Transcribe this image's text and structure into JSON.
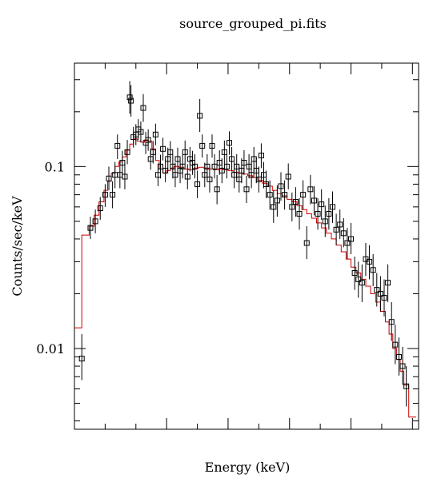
{
  "chart_data": {
    "type": "scatter",
    "title": "source_grouped_pi.fits",
    "xlabel": "Energy (keV)",
    "ylabel": "Counts/sec/keV",
    "y_scale": "log",
    "ylim": [
      0.0036,
      0.37
    ],
    "yticks": [
      {
        "value": 0.1,
        "label": "0.1"
      },
      {
        "value": 0.01,
        "label": "0.01"
      }
    ],
    "x_tick_labels_visible": false,
    "colors": {
      "data": "#000000",
      "model": "#cc0000",
      "axes": "#000000"
    },
    "series": [
      {
        "kind": "data-points-with-errors",
        "points": [
          [
            0.31,
            0.0088,
            0.012,
            0.0067
          ],
          [
            0.38,
            0.046,
            0.053,
            0.04
          ],
          [
            0.42,
            0.05,
            0.058,
            0.043
          ],
          [
            0.46,
            0.059,
            0.068,
            0.051
          ],
          [
            0.5,
            0.07,
            0.08,
            0.06
          ],
          [
            0.53,
            0.086,
            0.1,
            0.074
          ],
          [
            0.56,
            0.07,
            0.083,
            0.059
          ],
          [
            0.58,
            0.09,
            0.106,
            0.076
          ],
          [
            0.6,
            0.13,
            0.15,
            0.11
          ],
          [
            0.62,
            0.09,
            0.106,
            0.076
          ],
          [
            0.64,
            0.105,
            0.122,
            0.09
          ],
          [
            0.66,
            0.088,
            0.104,
            0.075
          ],
          [
            0.68,
            0.12,
            0.14,
            0.103
          ],
          [
            0.7,
            0.24,
            0.295,
            0.195
          ],
          [
            0.71,
            0.23,
            0.28,
            0.188
          ],
          [
            0.73,
            0.145,
            0.165,
            0.127
          ],
          [
            0.75,
            0.15,
            0.171,
            0.131
          ],
          [
            0.77,
            0.16,
            0.182,
            0.14
          ],
          [
            0.79,
            0.155,
            0.177,
            0.136
          ],
          [
            0.81,
            0.21,
            0.25,
            0.176
          ],
          [
            0.83,
            0.135,
            0.155,
            0.117
          ],
          [
            0.85,
            0.14,
            0.16,
            0.122
          ],
          [
            0.87,
            0.11,
            0.126,
            0.096
          ],
          [
            0.89,
            0.12,
            0.138,
            0.104
          ],
          [
            0.91,
            0.15,
            0.172,
            0.131
          ],
          [
            0.93,
            0.09,
            0.104,
            0.078
          ],
          [
            0.95,
            0.1,
            0.116,
            0.086
          ],
          [
            0.97,
            0.125,
            0.144,
            0.108
          ],
          [
            0.99,
            0.095,
            0.11,
            0.082
          ],
          [
            1.01,
            0.11,
            0.127,
            0.095
          ],
          [
            1.03,
            0.12,
            0.138,
            0.104
          ],
          [
            1.05,
            0.1,
            0.116,
            0.086
          ],
          [
            1.07,
            0.09,
            0.105,
            0.077
          ],
          [
            1.09,
            0.11,
            0.127,
            0.095
          ],
          [
            1.11,
            0.095,
            0.111,
            0.081
          ],
          [
            1.13,
            0.1,
            0.116,
            0.086
          ],
          [
            1.15,
            0.12,
            0.139,
            0.103
          ],
          [
            1.17,
            0.088,
            0.103,
            0.075
          ],
          [
            1.19,
            0.11,
            0.128,
            0.094
          ],
          [
            1.21,
            0.105,
            0.122,
            0.09
          ],
          [
            1.23,
            0.1,
            0.117,
            0.086
          ],
          [
            1.25,
            0.08,
            0.095,
            0.067
          ],
          [
            1.27,
            0.19,
            0.235,
            0.155
          ],
          [
            1.29,
            0.13,
            0.15,
            0.112
          ],
          [
            1.31,
            0.09,
            0.105,
            0.077
          ],
          [
            1.33,
            0.1,
            0.117,
            0.086
          ],
          [
            1.35,
            0.085,
            0.1,
            0.072
          ],
          [
            1.37,
            0.13,
            0.15,
            0.112
          ],
          [
            1.39,
            0.1,
            0.117,
            0.086
          ],
          [
            1.41,
            0.075,
            0.09,
            0.062
          ],
          [
            1.43,
            0.105,
            0.123,
            0.09
          ],
          [
            1.45,
            0.095,
            0.111,
            0.081
          ],
          [
            1.47,
            0.12,
            0.139,
            0.103
          ],
          [
            1.49,
            0.1,
            0.117,
            0.086
          ],
          [
            1.51,
            0.135,
            0.156,
            0.116
          ],
          [
            1.53,
            0.11,
            0.128,
            0.094
          ],
          [
            1.55,
            0.09,
            0.106,
            0.076
          ],
          [
            1.57,
            0.1,
            0.117,
            0.086
          ],
          [
            1.59,
            0.085,
            0.1,
            0.072
          ],
          [
            1.61,
            0.095,
            0.111,
            0.081
          ],
          [
            1.63,
            0.105,
            0.123,
            0.09
          ],
          [
            1.65,
            0.075,
            0.089,
            0.063
          ],
          [
            1.67,
            0.1,
            0.117,
            0.086
          ],
          [
            1.69,
            0.09,
            0.106,
            0.076
          ],
          [
            1.71,
            0.11,
            0.128,
            0.094
          ],
          [
            1.73,
            0.095,
            0.112,
            0.081
          ],
          [
            1.75,
            0.085,
            0.1,
            0.072
          ],
          [
            1.77,
            0.115,
            0.134,
            0.098
          ],
          [
            1.79,
            0.09,
            0.106,
            0.076
          ],
          [
            1.81,
            0.08,
            0.095,
            0.067
          ],
          [
            1.84,
            0.07,
            0.084,
            0.058
          ],
          [
            1.87,
            0.06,
            0.074,
            0.049
          ],
          [
            1.9,
            0.065,
            0.079,
            0.053
          ],
          [
            1.93,
            0.078,
            0.093,
            0.065
          ],
          [
            1.96,
            0.07,
            0.084,
            0.058
          ],
          [
            1.99,
            0.088,
            0.104,
            0.075
          ],
          [
            2.02,
            0.06,
            0.072,
            0.05
          ],
          [
            2.05,
            0.064,
            0.077,
            0.053
          ],
          [
            2.08,
            0.055,
            0.067,
            0.045
          ],
          [
            2.11,
            0.07,
            0.084,
            0.058
          ],
          [
            2.14,
            0.038,
            0.047,
            0.031
          ],
          [
            2.17,
            0.075,
            0.09,
            0.062
          ],
          [
            2.2,
            0.065,
            0.078,
            0.054
          ],
          [
            2.23,
            0.055,
            0.067,
            0.045
          ],
          [
            2.26,
            0.062,
            0.075,
            0.051
          ],
          [
            2.29,
            0.05,
            0.061,
            0.041
          ],
          [
            2.32,
            0.055,
            0.067,
            0.045
          ],
          [
            2.35,
            0.06,
            0.073,
            0.049
          ],
          [
            2.38,
            0.045,
            0.055,
            0.037
          ],
          [
            2.41,
            0.048,
            0.058,
            0.04
          ],
          [
            2.44,
            0.043,
            0.052,
            0.036
          ],
          [
            2.47,
            0.038,
            0.046,
            0.031
          ],
          [
            2.5,
            0.04,
            0.049,
            0.033
          ],
          [
            2.53,
            0.026,
            0.032,
            0.021
          ],
          [
            2.56,
            0.024,
            0.03,
            0.019
          ],
          [
            2.59,
            0.023,
            0.029,
            0.018
          ],
          [
            2.62,
            0.031,
            0.038,
            0.025
          ],
          [
            2.65,
            0.03,
            0.037,
            0.024
          ],
          [
            2.68,
            0.027,
            0.033,
            0.022
          ],
          [
            2.71,
            0.021,
            0.026,
            0.017
          ],
          [
            2.74,
            0.02,
            0.025,
            0.016
          ],
          [
            2.77,
            0.019,
            0.024,
            0.015
          ],
          [
            2.8,
            0.023,
            0.029,
            0.018
          ],
          [
            2.83,
            0.014,
            0.018,
            0.011
          ],
          [
            2.86,
            0.0105,
            0.0135,
            0.0082
          ],
          [
            2.89,
            0.009,
            0.0115,
            0.0071
          ],
          [
            2.92,
            0.008,
            0.0102,
            0.0063
          ],
          [
            2.95,
            0.0062,
            0.008,
            0.0048
          ]
        ]
      },
      {
        "kind": "model-step",
        "steps": [
          [
            0.25,
            0.31,
            0.013
          ],
          [
            0.31,
            0.37,
            0.042
          ],
          [
            0.37,
            0.41,
            0.047
          ],
          [
            0.41,
            0.45,
            0.054
          ],
          [
            0.45,
            0.49,
            0.064
          ],
          [
            0.49,
            0.52,
            0.074
          ],
          [
            0.52,
            0.55,
            0.083
          ],
          [
            0.55,
            0.58,
            0.092
          ],
          [
            0.58,
            0.61,
            0.1
          ],
          [
            0.61,
            0.64,
            0.106
          ],
          [
            0.64,
            0.67,
            0.113
          ],
          [
            0.67,
            0.7,
            0.123
          ],
          [
            0.7,
            0.73,
            0.133
          ],
          [
            0.73,
            0.76,
            0.142
          ],
          [
            0.76,
            0.79,
            0.138
          ],
          [
            0.79,
            0.82,
            0.136
          ],
          [
            0.82,
            0.85,
            0.14
          ],
          [
            0.85,
            0.88,
            0.138
          ],
          [
            0.88,
            0.91,
            0.125
          ],
          [
            0.91,
            0.94,
            0.108
          ],
          [
            0.94,
            0.97,
            0.097
          ],
          [
            0.97,
            1.0,
            0.092
          ],
          [
            1.0,
            1.03,
            0.095
          ],
          [
            1.03,
            1.06,
            0.098
          ],
          [
            1.06,
            1.1,
            0.1
          ],
          [
            1.1,
            1.14,
            0.099
          ],
          [
            1.14,
            1.18,
            0.097
          ],
          [
            1.18,
            1.22,
            0.096
          ],
          [
            1.22,
            1.26,
            0.098
          ],
          [
            1.26,
            1.3,
            0.099
          ],
          [
            1.3,
            1.34,
            0.098
          ],
          [
            1.34,
            1.38,
            0.097
          ],
          [
            1.38,
            1.42,
            0.096
          ],
          [
            1.42,
            1.46,
            0.097
          ],
          [
            1.46,
            1.5,
            0.096
          ],
          [
            1.5,
            1.54,
            0.095
          ],
          [
            1.54,
            1.58,
            0.093
          ],
          [
            1.58,
            1.62,
            0.092
          ],
          [
            1.62,
            1.66,
            0.091
          ],
          [
            1.66,
            1.7,
            0.089
          ],
          [
            1.7,
            1.74,
            0.087
          ],
          [
            1.74,
            1.78,
            0.084
          ],
          [
            1.78,
            1.82,
            0.081
          ],
          [
            1.82,
            1.86,
            0.078
          ],
          [
            1.86,
            1.9,
            0.074
          ],
          [
            1.9,
            1.94,
            0.071
          ],
          [
            1.94,
            1.98,
            0.069
          ],
          [
            1.98,
            2.02,
            0.066
          ],
          [
            2.02,
            2.06,
            0.064
          ],
          [
            2.06,
            2.1,
            0.061
          ],
          [
            2.1,
            2.14,
            0.058
          ],
          [
            2.14,
            2.18,
            0.055
          ],
          [
            2.18,
            2.22,
            0.052
          ],
          [
            2.22,
            2.26,
            0.049
          ],
          [
            2.26,
            2.3,
            0.046
          ],
          [
            2.3,
            2.34,
            0.043
          ],
          [
            2.34,
            2.38,
            0.04
          ],
          [
            2.38,
            2.42,
            0.037
          ],
          [
            2.42,
            2.46,
            0.034
          ],
          [
            2.46,
            2.5,
            0.031
          ],
          [
            2.5,
            2.54,
            0.028
          ],
          [
            2.54,
            2.58,
            0.026
          ],
          [
            2.58,
            2.62,
            0.024
          ],
          [
            2.62,
            2.66,
            0.022
          ],
          [
            2.66,
            2.7,
            0.02
          ],
          [
            2.7,
            2.74,
            0.018
          ],
          [
            2.74,
            2.78,
            0.016
          ],
          [
            2.78,
            2.81,
            0.014
          ],
          [
            2.81,
            2.84,
            0.012
          ],
          [
            2.84,
            2.87,
            0.01
          ],
          [
            2.87,
            2.9,
            0.0087
          ],
          [
            2.9,
            2.93,
            0.0075
          ],
          [
            2.93,
            2.97,
            0.0063
          ],
          [
            2.97,
            3.03,
            0.0042
          ]
        ]
      }
    ]
  }
}
